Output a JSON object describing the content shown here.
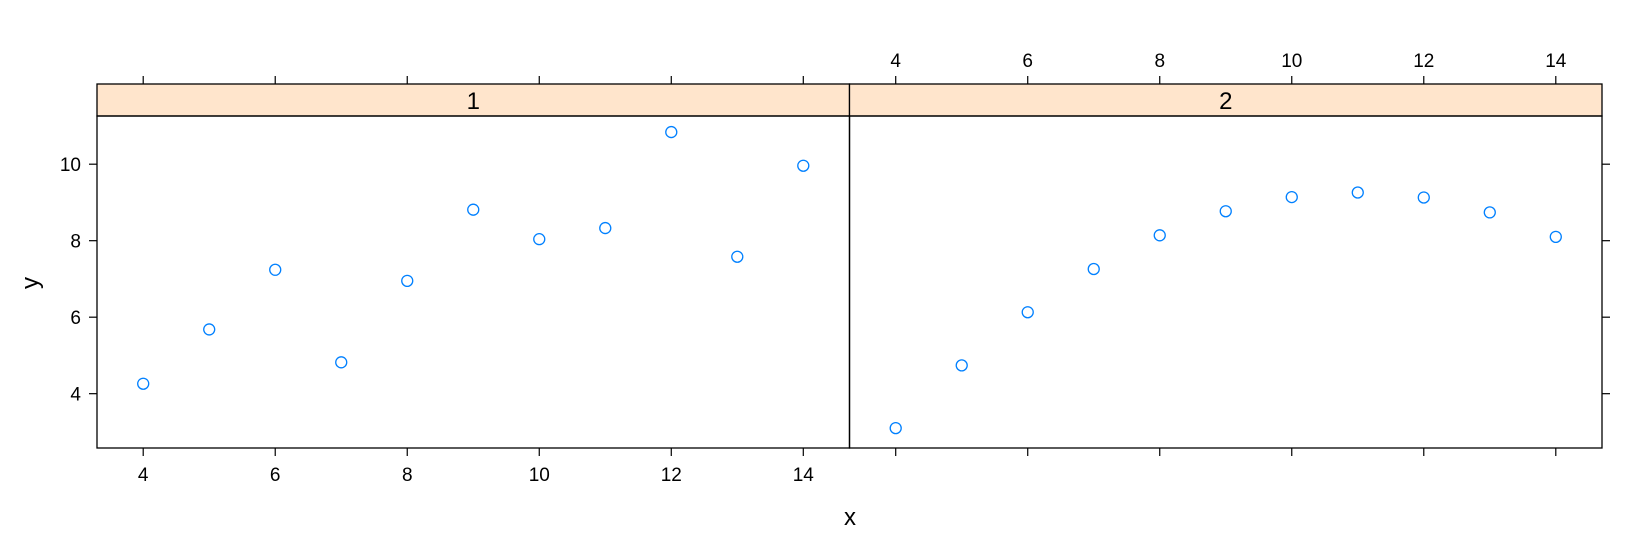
{
  "chart_data": {
    "type": "scatter",
    "xlabel": "x",
    "ylabel": "y",
    "xlim": [
      3.3,
      14.7
    ],
    "ylim": [
      2.58,
      11.26
    ],
    "x_ticks": [
      4,
      6,
      8,
      10,
      12,
      14
    ],
    "y_ticks": [
      4,
      6,
      8,
      10
    ],
    "strip_color": "#ffe5cc",
    "point_color": "#0080ff",
    "panels": [
      {
        "name": "1",
        "x": [
          4,
          5,
          6,
          7,
          8,
          9,
          10,
          11,
          12,
          13,
          14
        ],
        "y": [
          4.26,
          5.68,
          7.24,
          4.82,
          6.95,
          8.81,
          8.04,
          8.33,
          10.84,
          7.58,
          9.96
        ]
      },
      {
        "name": "2",
        "x": [
          4,
          5,
          6,
          7,
          8,
          9,
          10,
          11,
          12,
          13,
          14
        ],
        "y": [
          3.1,
          4.74,
          6.13,
          7.26,
          8.14,
          8.77,
          9.14,
          9.26,
          9.13,
          8.74,
          8.1
        ]
      }
    ]
  }
}
